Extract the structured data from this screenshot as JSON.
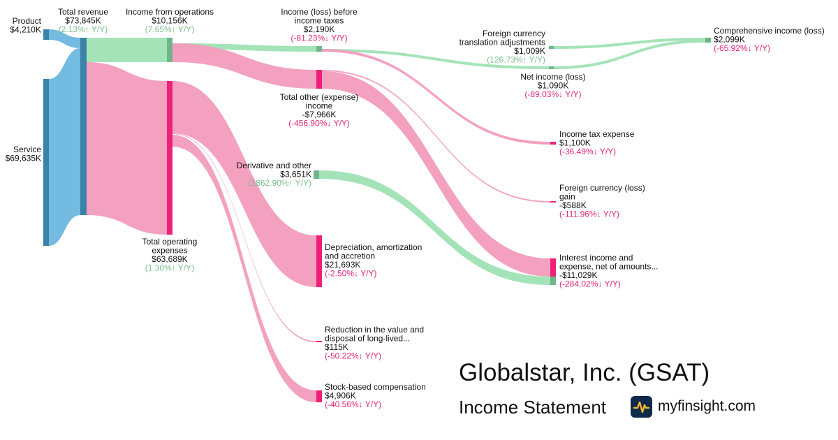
{
  "colors": {
    "revenue_node": "#3b82a8",
    "revenue_flow": "#6bb7df",
    "profit_node": "#6fb58a",
    "profit_flow": "#9fe1b4",
    "expense_node": "#ee2079",
    "expense_flow": "#f39cbd",
    "growth_up": "#7bbf8c",
    "growth_down": "#e0267a"
  },
  "nodes": [
    {
      "id": "product",
      "name": "Product",
      "value": "$4,210K",
      "change": ""
    },
    {
      "id": "service",
      "name": "Service",
      "value": "$69,635K",
      "change": ""
    },
    {
      "id": "total_revenue",
      "name": "Total revenue",
      "value": "$73,845K",
      "change": "(2.13%↑ Y/Y)"
    },
    {
      "id": "income_from_operations",
      "name": "Income from operations",
      "value": "$10,156K",
      "change": "(7.65%↑ Y/Y)"
    },
    {
      "id": "total_operating_expenses",
      "name": "Total operating expenses",
      "value": "$63,689K",
      "change": "(1.30%↑ Y/Y)"
    },
    {
      "id": "income_before_taxes",
      "name": "Income (loss) before income taxes",
      "value": "$2,190K",
      "change": "(-81.23%↓ Y/Y)"
    },
    {
      "id": "total_other_income",
      "name": "Total other (expense) income",
      "value": "-$7,966K",
      "change": "(-456.90%↓ Y/Y)"
    },
    {
      "id": "derivative_and_other",
      "name": "Derivative and other",
      "value": "$3,651K",
      "change": "(1862.90%↑ Y/Y)"
    },
    {
      "id": "depreciation",
      "name": "Depreciation, amortization and accretion",
      "value": "$21,693K",
      "change": "(-2.50%↓ Y/Y)"
    },
    {
      "id": "reduction_in_value",
      "name": "Reduction in the value and disposal of long-lived...",
      "value": "$115K",
      "change": "(-50.22%↓ Y/Y)"
    },
    {
      "id": "stock_based_comp",
      "name": "Stock-based compensation",
      "value": "$4,906K",
      "change": "(-40.56%↓ Y/Y)"
    },
    {
      "id": "fx_translation",
      "name": "Foreign currency translation adjustments",
      "value": "$1,009K",
      "change": "(126.73%↑ Y/Y)"
    },
    {
      "id": "net_income",
      "name": "Net income (loss)",
      "value": "$1,090K",
      "change": "(-89.03%↓ Y/Y)"
    },
    {
      "id": "income_tax_expense",
      "name": "Income tax expense",
      "value": "$1,100K",
      "change": "(-36.49%↓ Y/Y)"
    },
    {
      "id": "fx_gain",
      "name": "Foreign currency (loss) gain",
      "value": "-$588K",
      "change": "(-111.96%↓ Y/Y)"
    },
    {
      "id": "interest_income",
      "name": "Interest income and expense, net of amounts...",
      "value": "-$11,029K",
      "change": "(-284.02%↓ Y/Y)"
    },
    {
      "id": "comprehensive_income",
      "name": "Comprehensive income (loss)",
      "value": "$2,099K",
      "change": "(-65.92%↓ Y/Y)"
    }
  ],
  "links": [
    {
      "source": "product",
      "target": "total_revenue",
      "value": 4210,
      "kind": "revenue"
    },
    {
      "source": "service",
      "target": "total_revenue",
      "value": 69635,
      "kind": "revenue"
    },
    {
      "source": "total_revenue",
      "target": "income_from_operations",
      "value": 10156,
      "kind": "profit"
    },
    {
      "source": "total_revenue",
      "target": "total_operating_expenses",
      "value": 63689,
      "kind": "expense"
    },
    {
      "source": "income_from_operations",
      "target": "income_before_taxes",
      "value": 2190,
      "kind": "profit"
    },
    {
      "source": "income_from_operations",
      "target": "total_other_income",
      "value": 7966,
      "kind": "expense"
    },
    {
      "source": "total_operating_expenses",
      "target": "depreciation",
      "value": 21693,
      "kind": "expense"
    },
    {
      "source": "total_operating_expenses",
      "target": "reduction_in_value",
      "value": 115,
      "kind": "expense"
    },
    {
      "source": "total_operating_expenses",
      "target": "stock_based_comp",
      "value": 4906,
      "kind": "expense"
    },
    {
      "source": "income_before_taxes",
      "target": "net_income",
      "value": 1090,
      "kind": "profit"
    },
    {
      "source": "income_before_taxes",
      "target": "income_tax_expense",
      "value": 1100,
      "kind": "expense"
    },
    {
      "source": "total_other_income",
      "target": "fx_gain",
      "value": 588,
      "kind": "expense"
    },
    {
      "source": "total_other_income",
      "target": "interest_income",
      "value": 11029,
      "kind": "expense"
    },
    {
      "source": "derivative_and_other",
      "target": "interest_income",
      "value": 3651,
      "kind": "profit"
    },
    {
      "source": "fx_translation",
      "target": "comprehensive_income",
      "value": 1009,
      "kind": "profit"
    },
    {
      "source": "net_income",
      "target": "comprehensive_income",
      "value": 1090,
      "kind": "profit"
    }
  ],
  "brand": {
    "title": "Globalstar, Inc. (GSAT)",
    "subtitle": "Income Statement",
    "logo_icon": "pulse-line-icon",
    "site": "myfinsight.com"
  }
}
